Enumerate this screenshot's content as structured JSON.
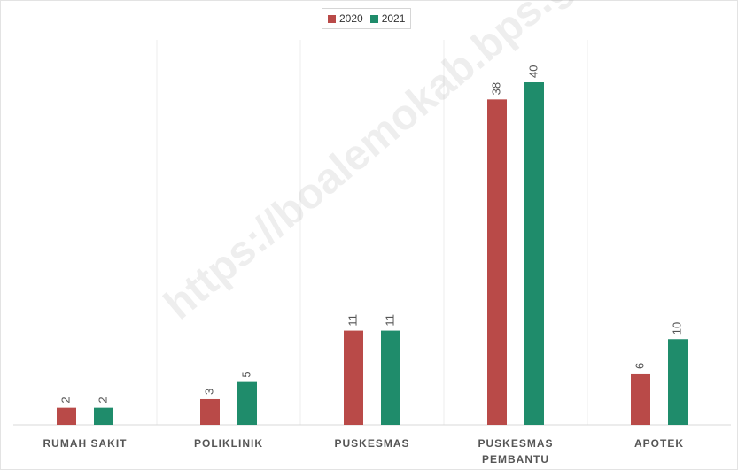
{
  "chart_data": {
    "type": "bar",
    "categories": [
      [
        "RUMAH SAKIT"
      ],
      [
        "POLIKLINIK"
      ],
      [
        "PUSKESMAS"
      ],
      [
        "PUSKESMAS",
        "PEMBANTU"
      ],
      [
        "APOTEK"
      ]
    ],
    "series": [
      {
        "name": "2020",
        "color": "#b94a48",
        "values": [
          2,
          3,
          11,
          38,
          6
        ]
      },
      {
        "name": "2021",
        "color": "#1f8c6b",
        "values": [
          2,
          5,
          11,
          40,
          10
        ]
      }
    ],
    "ylim": [
      0,
      40
    ],
    "grid": false,
    "legend": "top-center"
  },
  "watermark": "https://boalemokab.bps.go.id"
}
